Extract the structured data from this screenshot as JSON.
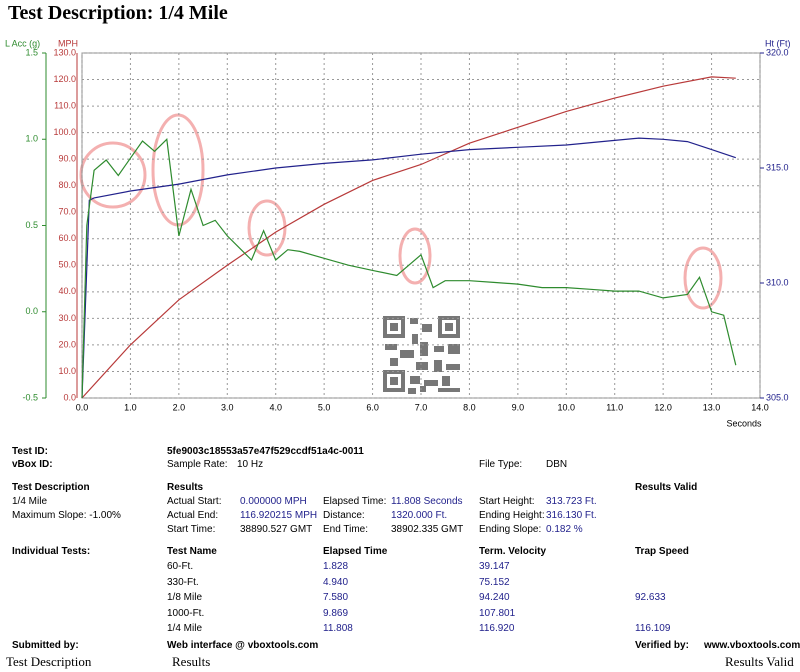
{
  "header": {
    "title": "Test Description: 1/4 Mile"
  },
  "chart_data": {
    "type": "line",
    "x_label": "Seconds",
    "y_label": "MPH",
    "y2_label": "Ht (Ft)",
    "y3_label": "L Acc (g)",
    "xlim": [
      0,
      14
    ],
    "xticks": [
      {
        "value": 0,
        "label": "0.0"
      },
      {
        "value": 1,
        "label": "1.0"
      },
      {
        "value": 2,
        "label": "2.0"
      },
      {
        "value": 3,
        "label": "3.0"
      },
      {
        "value": 4,
        "label": "4.0"
      },
      {
        "value": 5,
        "label": "5.0"
      },
      {
        "value": 6,
        "label": "6.0"
      },
      {
        "value": 7,
        "label": "7.0"
      },
      {
        "value": 8,
        "label": "8.0"
      },
      {
        "value": 9,
        "label": "9.0"
      },
      {
        "value": 10,
        "label": "10.0"
      },
      {
        "value": 11,
        "label": "11.0"
      },
      {
        "value": 12,
        "label": "12.0"
      },
      {
        "value": 13,
        "label": "13.0"
      },
      {
        "value": 14,
        "label": "14.0"
      }
    ],
    "ylim": [
      0,
      130
    ],
    "yticks": [
      {
        "value": 0,
        "label": "0.0"
      },
      {
        "value": 10,
        "label": "10.0"
      },
      {
        "value": 20,
        "label": "20.0"
      },
      {
        "value": 30,
        "label": "30.0"
      },
      {
        "value": 40,
        "label": "40.0"
      },
      {
        "value": 50,
        "label": "50.0"
      },
      {
        "value": 60,
        "label": "60.0"
      },
      {
        "value": 70,
        "label": "70.0"
      },
      {
        "value": 80,
        "label": "80.0"
      },
      {
        "value": 90,
        "label": "90.0"
      },
      {
        "value": 100,
        "label": "100.0"
      },
      {
        "value": 110,
        "label": "110.0"
      },
      {
        "value": 120,
        "label": "120.0"
      },
      {
        "value": 130,
        "label": "130.0"
      }
    ],
    "y2lim": [
      305,
      320
    ],
    "y2ticks": [
      {
        "value": 305,
        "label": "305.0"
      },
      {
        "value": 310,
        "label": "310.0"
      },
      {
        "value": 315,
        "label": "315.0"
      },
      {
        "value": 320,
        "label": "320.0"
      }
    ],
    "y3lim": [
      -0.5,
      1.5
    ],
    "y3ticks": [
      -0.5,
      {
        "value": 0,
        "label": "0.0"
      },
      0.5,
      {
        "value": 1,
        "label": "1.0"
      },
      1.5
    ],
    "grid": true,
    "series": [
      {
        "name": "MPH",
        "color": "#b83a3a",
        "axis": "y",
        "x": [
          0,
          1,
          2,
          3,
          4,
          5,
          6,
          7,
          8,
          9,
          10,
          11,
          12,
          13,
          13.5
        ],
        "values": [
          0,
          20,
          37,
          50,
          62.5,
          73,
          82,
          88,
          96,
          102,
          108,
          113,
          117.5,
          121,
          120.5
        ]
      },
      {
        "name": "Ht (Ft)",
        "color": "#22228c",
        "axis": "y2",
        "x": [
          0,
          0.15,
          0.25,
          1,
          2,
          3,
          4,
          5,
          6,
          7,
          8,
          9,
          10,
          11,
          11.5,
          12,
          12.5,
          13,
          13.5
        ],
        "values": [
          305,
          313.6,
          313.7,
          314,
          314.3,
          314.7,
          315,
          315.2,
          315.35,
          315.6,
          315.8,
          315.9,
          316,
          316.2,
          316.3,
          316.25,
          316.15,
          315.8,
          315.45
        ]
      },
      {
        "name": "L Acc (g)",
        "color": "#2e8b2e",
        "axis": "y3",
        "x": [
          0,
          0.1,
          0.25,
          0.5,
          0.75,
          1,
          1.25,
          1.5,
          1.75,
          2,
          2.25,
          2.5,
          2.75,
          3,
          3.25,
          3.5,
          3.75,
          4,
          4.25,
          4.5,
          5,
          5.5,
          6,
          6.5,
          7,
          7.25,
          7.5,
          8,
          8.5,
          9,
          9.5,
          10,
          10.5,
          11,
          11.5,
          12,
          12.5,
          12.75,
          13,
          13.25,
          13.5
        ],
        "values": [
          -0.5,
          0.5,
          0.82,
          0.88,
          0.79,
          0.89,
          0.99,
          0.93,
          1.0,
          0.44,
          0.71,
          0.5,
          0.53,
          0.44,
          0.37,
          0.3,
          0.47,
          0.3,
          0.36,
          0.35,
          0.31,
          0.27,
          0.24,
          0.21,
          0.33,
          0.14,
          0.18,
          0.18,
          0.17,
          0.16,
          0.14,
          0.14,
          0.13,
          0.12,
          0.12,
          0.08,
          0.1,
          0.2,
          0.0,
          -0.02,
          -0.31
        ]
      }
    ]
  },
  "report": {
    "test_id_label": "Test ID:",
    "test_id": "5fe9003c18553a57e47f529ccdf51a4c-0011",
    "vbox_id_label": "vBox ID:",
    "sample_rate_label": "Sample Rate:",
    "sample_rate": "10 Hz",
    "file_type_label": "File Type:",
    "file_type": "DBN",
    "test_description_label": "Test Description",
    "test_description": "1/4 Mile",
    "maximum_slope": "Maximum Slope: -1.00%",
    "results_label": "Results",
    "results_valid_label": "Results Valid",
    "results": [
      [
        "Actual Start:",
        "0.000000 MPH",
        "Elapsed Time:",
        "11.808 Seconds",
        "Start Height:",
        "313.723 Ft."
      ],
      [
        "Actual End:",
        "116.920215 MPH",
        "Distance:",
        "1320.000 Ft.",
        "Ending Height:",
        "316.130 Ft."
      ],
      [
        "Start Time:",
        "38890.527 GMT",
        "End Time:",
        "38902.335 GMT",
        "Ending Slope:",
        "0.182 %"
      ]
    ],
    "individual_tests_label": "Individual Tests:",
    "tests_header": [
      "Test Name",
      "Elapsed Time",
      "Term. Velocity",
      "Trap Speed"
    ],
    "tests": [
      [
        "60-Ft.",
        "1.828",
        "39.147",
        null
      ],
      [
        "330-Ft.",
        "4.940",
        "75.152",
        null
      ],
      [
        "1/8 Mile",
        "7.580",
        "94.240",
        "92.633"
      ],
      [
        "1000-Ft.",
        "9.869",
        "107.801",
        null
      ],
      [
        "1/4 Mile",
        "11.808",
        "116.920",
        "116.109"
      ]
    ],
    "submitted_by_label": "Submitted by:",
    "submitted_by": "Web interface @ vboxtools.com",
    "verified_by_label": "Verified by:",
    "verified_by": "www.vboxtools.com"
  },
  "footer": {
    "left": "Test Description",
    "middle": "Results",
    "right": "Results Valid"
  }
}
